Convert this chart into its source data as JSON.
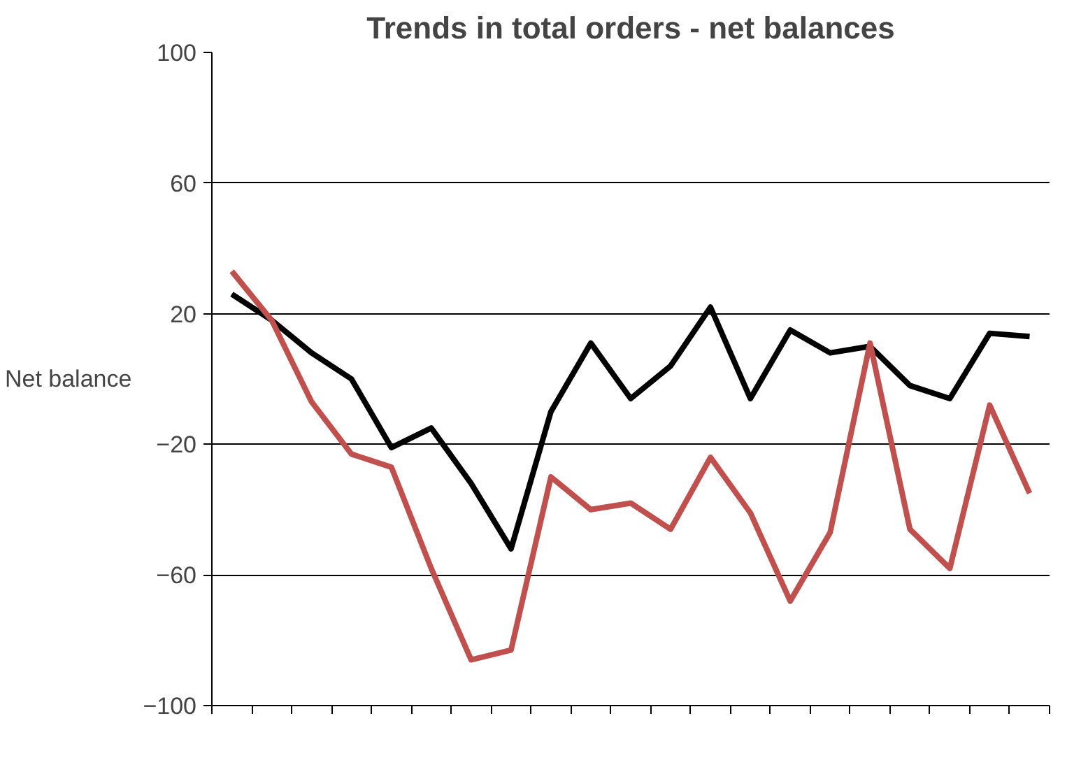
{
  "chart_data": {
    "type": "line",
    "title": "Trends in total orders - net balances",
    "ylabel": "Net balance",
    "categories": [
      null,
      null,
      null,
      null,
      null,
      null,
      null,
      null,
      null,
      null,
      null,
      null,
      null,
      null,
      null,
      null,
      null,
      null,
      null,
      null,
      null
    ],
    "series": [
      {
        "color": "#000000",
        "values": [
          26,
          18,
          8,
          0,
          -21,
          -15,
          -32,
          -52,
          -10,
          11,
          -6,
          4,
          22,
          -6,
          15,
          8,
          10,
          -2,
          -6,
          14,
          13
        ]
      },
      {
        "color": "#c0504d",
        "values": [
          33,
          18,
          -7,
          -23,
          -27,
          -58,
          -86,
          -83,
          -30,
          -40,
          -38,
          -46,
          -24,
          -41,
          -68,
          -47,
          11,
          -46,
          -58,
          -8,
          -35
        ]
      }
    ],
    "ylim": [
      -100,
      100
    ],
    "yticks": [
      -100,
      -60,
      -20,
      20,
      60,
      100
    ],
    "grid": "y",
    "tick_labels": "y",
    "marker": "none",
    "line_style": "solid"
  }
}
